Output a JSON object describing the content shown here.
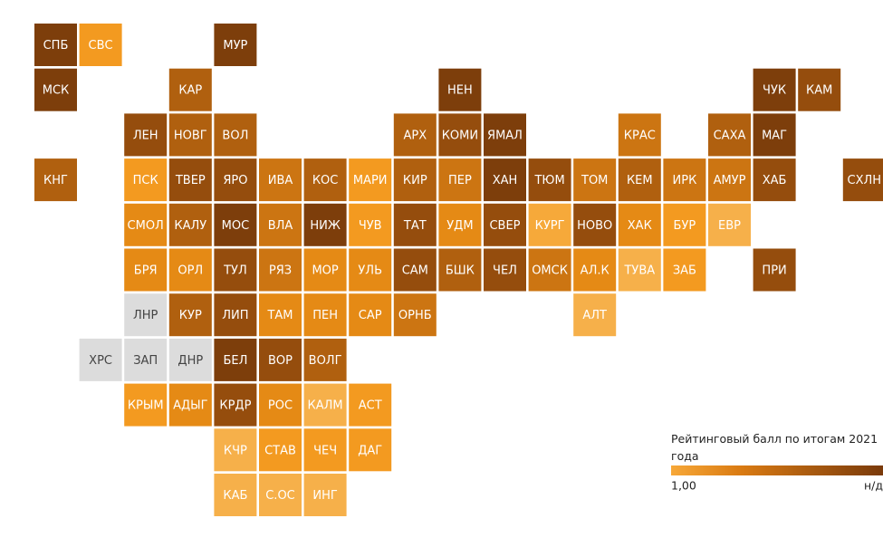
{
  "map": {
    "rows": [
      [
        {
          "label": "СПБ",
          "color": "#7d3e0b"
        },
        {
          "label": "СВС",
          "color": "#f39a20"
        },
        null,
        null,
        {
          "label": "МУР",
          "color": "#7d3e0b"
        }
      ],
      [
        {
          "label": "МСК",
          "color": "#7d3e0b"
        },
        null,
        null,
        {
          "label": "КАР",
          "color": "#b0600f"
        },
        null,
        null,
        null,
        null,
        null,
        {
          "label": "НЕН",
          "color": "#7d3e0b"
        },
        null,
        null,
        null,
        null,
        null,
        null,
        {
          "label": "ЧУК",
          "color": "#7d3e0b"
        },
        {
          "label": "КАМ",
          "color": "#954d0d"
        }
      ],
      [
        null,
        null,
        {
          "label": "ЛЕН",
          "color": "#954d0d"
        },
        {
          "label": "НОВГ",
          "color": "#b0600f"
        },
        {
          "label": "ВОЛ",
          "color": "#b0600f"
        },
        null,
        null,
        null,
        {
          "label": "АРХ",
          "color": "#b0600f"
        },
        {
          "label": "КОМИ",
          "color": "#954d0d"
        },
        {
          "label": "ЯМАЛ",
          "color": "#7d3e0b"
        },
        null,
        null,
        {
          "label": "КРАС",
          "color": "#cc7512"
        },
        null,
        {
          "label": "САХА",
          "color": "#b0600f"
        },
        {
          "label": "МАГ",
          "color": "#7d3e0b"
        }
      ],
      [
        {
          "label": "КНГ",
          "color": "#b0600f"
        },
        null,
        {
          "label": "ПСК",
          "color": "#f39a20"
        },
        {
          "label": "ТВЕР",
          "color": "#954d0d"
        },
        {
          "label": "ЯРО",
          "color": "#954d0d"
        },
        {
          "label": "ИВА",
          "color": "#cc7512"
        },
        {
          "label": "КОС",
          "color": "#b0600f"
        },
        {
          "label": "МАРИ",
          "color": "#f39a20"
        },
        {
          "label": "КИР",
          "color": "#b0600f"
        },
        {
          "label": "ПЕР",
          "color": "#cc7512"
        },
        {
          "label": "ХАН",
          "color": "#7d3e0b"
        },
        {
          "label": "ТЮМ",
          "color": "#954d0d"
        },
        {
          "label": "ТОМ",
          "color": "#cc7512"
        },
        {
          "label": "КЕМ",
          "color": "#b0600f"
        },
        {
          "label": "ИРК",
          "color": "#cc7512"
        },
        {
          "label": "АМУР",
          "color": "#cc7512"
        },
        {
          "label": "ХАБ",
          "color": "#954d0d"
        },
        null,
        {
          "label": "СХЛН",
          "color": "#954d0d"
        }
      ],
      [
        null,
        null,
        {
          "label": "СМОЛ",
          "color": "#e58a15"
        },
        {
          "label": "КАЛУ",
          "color": "#b0600f"
        },
        {
          "label": "МОС",
          "color": "#7d3e0b"
        },
        {
          "label": "ВЛА",
          "color": "#cc7512"
        },
        {
          "label": "НИЖ",
          "color": "#7d3e0b"
        },
        {
          "label": "ЧУВ",
          "color": "#f39a20"
        },
        {
          "label": "ТАТ",
          "color": "#954d0d"
        },
        {
          "label": "УДМ",
          "color": "#e58a15"
        },
        {
          "label": "СВЕР",
          "color": "#954d0d"
        },
        {
          "label": "КУРГ",
          "color": "#f6a93a"
        },
        {
          "label": "НОВО",
          "color": "#954d0d"
        },
        {
          "label": "ХАК",
          "color": "#e58a15"
        },
        {
          "label": "БУР",
          "color": "#f39a20"
        },
        {
          "label": "ЕВР",
          "color": "#f6b04a"
        }
      ],
      [
        null,
        null,
        {
          "label": "БРЯ",
          "color": "#e58a15"
        },
        {
          "label": "ОРЛ",
          "color": "#e58a15"
        },
        {
          "label": "ТУЛ",
          "color": "#954d0d"
        },
        {
          "label": "РЯЗ",
          "color": "#cc7512"
        },
        {
          "label": "МОР",
          "color": "#e58a15"
        },
        {
          "label": "УЛЬ",
          "color": "#e58a15"
        },
        {
          "label": "САМ",
          "color": "#954d0d"
        },
        {
          "label": "БШК",
          "color": "#b0600f"
        },
        {
          "label": "ЧЕЛ",
          "color": "#954d0d"
        },
        {
          "label": "ОМСК",
          "color": "#cc7512"
        },
        {
          "label": "АЛ.К",
          "color": "#e58a15"
        },
        {
          "label": "ТУВА",
          "color": "#f6b04a"
        },
        {
          "label": "ЗАБ",
          "color": "#f39a20"
        },
        null,
        {
          "label": "ПРИ",
          "color": "#954d0d"
        }
      ],
      [
        null,
        null,
        {
          "label": "ЛНР",
          "color": "#dcdcdc",
          "label_color": "#444444"
        },
        {
          "label": "КУР",
          "color": "#b0600f"
        },
        {
          "label": "ЛИП",
          "color": "#954d0d"
        },
        {
          "label": "ТАМ",
          "color": "#e58a15"
        },
        {
          "label": "ПЕН",
          "color": "#e58a15"
        },
        {
          "label": "САР",
          "color": "#e58a15"
        },
        {
          "label": "ОРНБ",
          "color": "#cc7512"
        },
        null,
        null,
        null,
        {
          "label": "АЛТ",
          "color": "#f6b04a"
        }
      ],
      [
        null,
        {
          "label": "ХРС",
          "color": "#dcdcdc",
          "label_color": "#444444"
        },
        {
          "label": "ЗАП",
          "color": "#dcdcdc",
          "label_color": "#444444"
        },
        {
          "label": "ДНР",
          "color": "#dcdcdc",
          "label_color": "#444444"
        },
        {
          "label": "БЕЛ",
          "color": "#7d3e0b"
        },
        {
          "label": "ВОР",
          "color": "#954d0d"
        },
        {
          "label": "ВОЛГ",
          "color": "#b0600f"
        }
      ],
      [
        null,
        null,
        {
          "label": "КРЫМ",
          "color": "#f39a20"
        },
        {
          "label": "АДЫГ",
          "color": "#e58a15"
        },
        {
          "label": "КРДР",
          "color": "#954d0d"
        },
        {
          "label": "РОС",
          "color": "#e58a15"
        },
        {
          "label": "КАЛМ",
          "color": "#f6b04a"
        },
        {
          "label": "АСТ",
          "color": "#f39a20"
        }
      ],
      [
        null,
        null,
        null,
        null,
        {
          "label": "КЧР",
          "color": "#f6b04a"
        },
        {
          "label": "СТАВ",
          "color": "#f39a20"
        },
        {
          "label": "ЧЕЧ",
          "color": "#f39a20"
        },
        {
          "label": "ДАГ",
          "color": "#f39a20"
        }
      ],
      [
        null,
        null,
        null,
        null,
        {
          "label": "КАБ",
          "color": "#f6b04a"
        },
        {
          "label": "С.ОС",
          "color": "#f6b04a"
        },
        {
          "label": "ИНГ",
          "color": "#f6b04a"
        }
      ]
    ],
    "label_color": "#ffffff",
    "legend": {
      "title": "Рейтинговый балл по итогам 2021 года",
      "min_label": "1,00",
      "max_label": "н/д",
      "gradient": [
        "#f7a838",
        "#d97a12",
        "#a85a10",
        "#7a3a0a"
      ]
    }
  }
}
